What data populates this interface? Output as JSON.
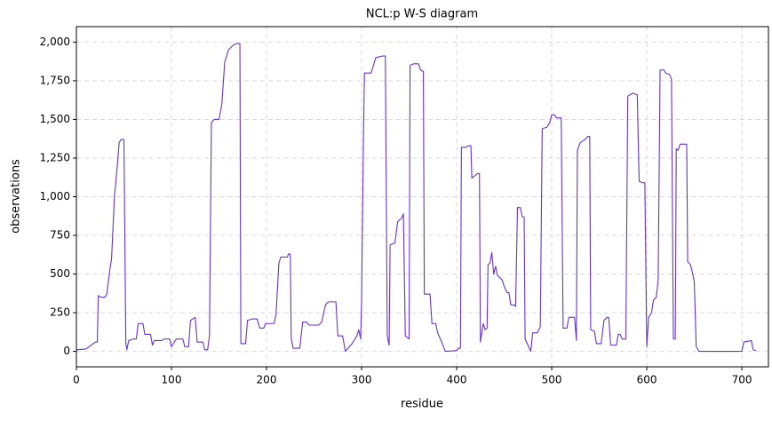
{
  "chart_data": {
    "type": "line",
    "title": "NCL:p W-S diagram",
    "x_label": "residue",
    "y_label": "observations",
    "color": "#6633cc",
    "grid": true,
    "xlim": [
      0,
      728
    ],
    "ylim": [
      -100,
      2100
    ],
    "xticks": [
      0,
      100,
      200,
      300,
      400,
      500,
      600,
      700
    ],
    "yticks": [
      0,
      250,
      500,
      750,
      {
        "value": 1000,
        "label": "1,000"
      },
      {
        "value": 1250,
        "label": "1,250"
      },
      {
        "value": 1500,
        "label": "1,500"
      },
      {
        "value": 1750,
        "label": "1,750"
      },
      {
        "value": 2000,
        "label": "2,000"
      }
    ],
    "x": [
      0,
      10,
      20,
      22,
      23,
      26,
      30,
      32,
      35,
      37,
      40,
      43,
      45,
      47,
      50,
      52,
      53,
      55,
      60,
      63,
      65,
      70,
      72,
      78,
      80,
      82,
      90,
      92,
      98,
      100,
      105,
      112,
      114,
      118,
      120,
      125,
      127,
      133,
      135,
      138,
      140,
      142,
      145,
      150,
      153,
      156,
      160,
      165,
      168,
      172,
      173,
      178,
      180,
      185,
      190,
      193,
      197,
      199,
      208,
      210,
      213,
      215,
      222,
      223,
      225,
      226,
      228,
      235,
      238,
      242,
      245,
      255,
      258,
      262,
      265,
      273,
      275,
      280,
      283,
      290,
      295,
      297,
      299,
      300,
      302,
      303,
      310,
      315,
      322,
      325,
      327,
      329,
      330,
      335,
      338,
      342,
      344,
      346,
      350,
      351,
      355,
      360,
      362,
      365,
      366,
      372,
      374,
      378,
      380,
      385,
      388,
      400,
      402,
      404,
      405,
      410,
      412,
      415,
      416,
      422,
      424,
      425,
      428,
      430,
      432,
      433,
      435,
      437,
      439,
      441,
      443,
      445,
      448,
      450,
      453,
      455,
      457,
      460,
      462,
      464,
      467,
      469,
      471,
      472,
      475,
      478,
      480,
      485,
      488,
      490,
      495,
      498,
      500,
      503,
      505,
      510,
      512,
      516,
      518,
      524,
      526,
      527,
      530,
      535,
      538,
      540,
      541,
      545,
      547,
      552,
      555,
      558,
      560,
      562,
      568,
      570,
      572,
      574,
      578,
      580,
      585,
      590,
      592,
      596,
      598,
      600,
      602,
      605,
      607,
      610,
      612,
      614,
      618,
      620,
      624,
      626,
      628,
      630,
      631,
      633,
      635,
      642,
      643,
      646,
      648,
      650,
      652,
      655,
      700,
      702,
      710,
      712,
      715
    ],
    "values": [
      10,
      15,
      60,
      60,
      360,
      350,
      350,
      370,
      520,
      600,
      1000,
      1200,
      1350,
      1370,
      1370,
      50,
      10,
      70,
      80,
      80,
      180,
      180,
      110,
      110,
      40,
      70,
      70,
      80,
      80,
      30,
      80,
      80,
      30,
      30,
      200,
      220,
      60,
      60,
      10,
      10,
      100,
      1480,
      1500,
      1500,
      1600,
      1870,
      1950,
      1980,
      1990,
      1990,
      50,
      50,
      200,
      210,
      210,
      150,
      150,
      180,
      180,
      240,
      570,
      610,
      610,
      630,
      630,
      80,
      20,
      20,
      190,
      190,
      170,
      170,
      190,
      300,
      320,
      320,
      100,
      100,
      0,
      50,
      100,
      140,
      80,
      330,
      1400,
      1800,
      1800,
      1900,
      1910,
      1910,
      100,
      40,
      690,
      700,
      840,
      860,
      890,
      100,
      80,
      1850,
      1860,
      1860,
      1820,
      1810,
      370,
      370,
      180,
      180,
      120,
      50,
      0,
      5,
      20,
      20,
      1320,
      1320,
      1330,
      1330,
      1120,
      1150,
      1150,
      60,
      180,
      140,
      150,
      560,
      570,
      640,
      500,
      550,
      490,
      480,
      460,
      420,
      380,
      380,
      300,
      300,
      290,
      930,
      930,
      870,
      870,
      80,
      40,
      0,
      120,
      120,
      160,
      1440,
      1450,
      1480,
      1530,
      1530,
      1510,
      1510,
      150,
      150,
      220,
      220,
      70,
      1300,
      1350,
      1370,
      1390,
      1390,
      140,
      130,
      50,
      50,
      200,
      220,
      220,
      40,
      40,
      110,
      110,
      80,
      80,
      1650,
      1670,
      1660,
      1100,
      1090,
      1090,
      30,
      220,
      250,
      330,
      350,
      460,
      1820,
      1820,
      1800,
      1790,
      1760,
      80,
      80,
      1310,
      1300,
      1340,
      1340,
      580,
      560,
      510,
      450,
      30,
      0,
      0,
      60,
      70,
      10,
      5
    ]
  }
}
